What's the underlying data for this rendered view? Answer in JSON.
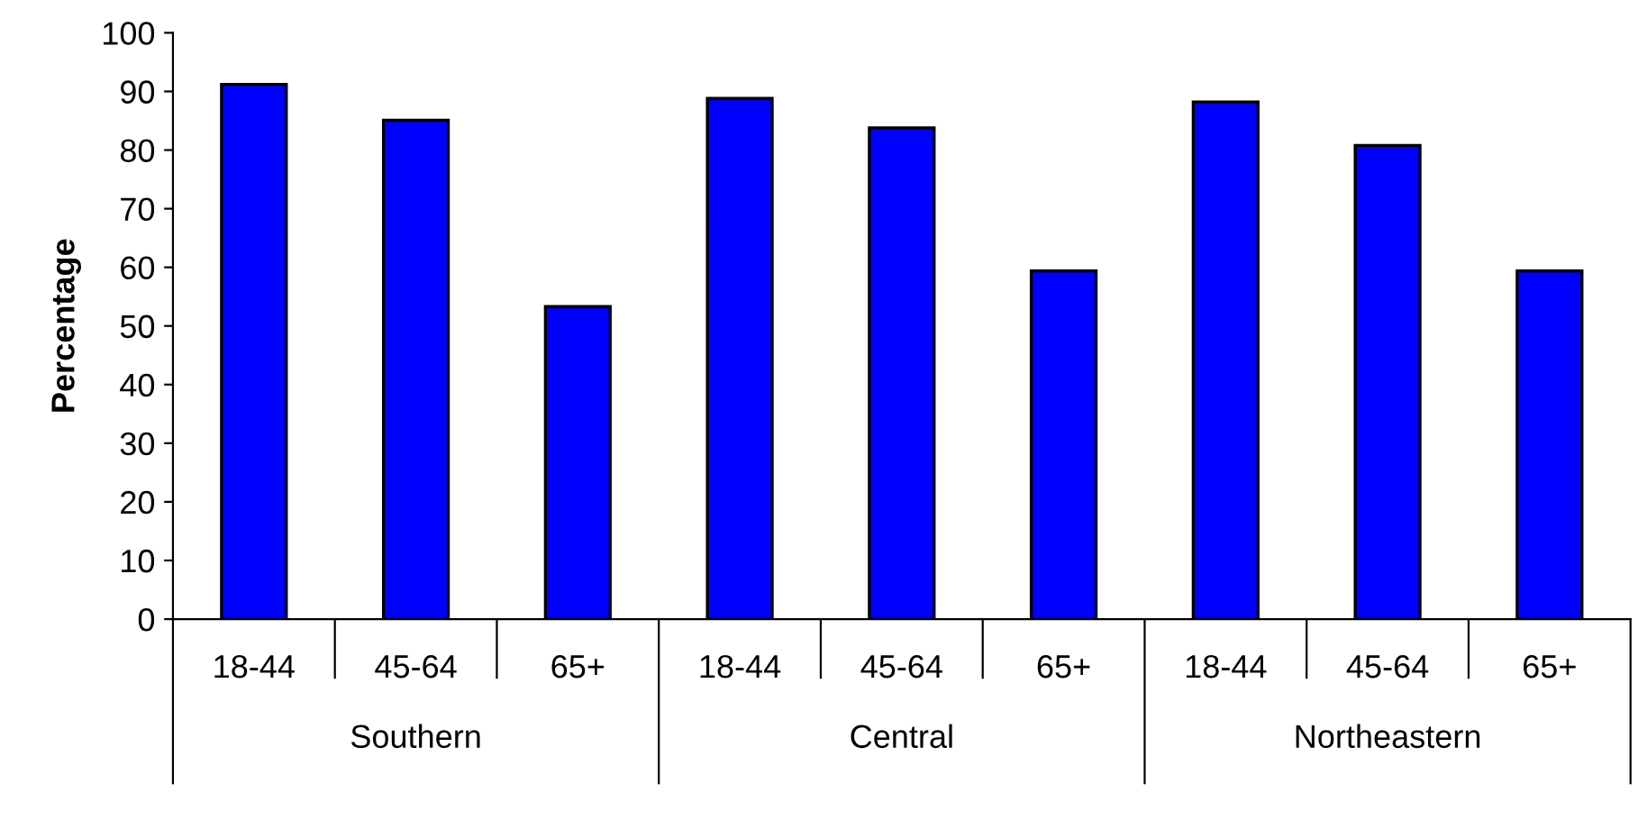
{
  "chart_data": {
    "type": "bar",
    "ylabel": "Percentage",
    "categories": [
      "18-44",
      "45-64",
      "65+",
      "18-44",
      "45-64",
      "65+",
      "18-44",
      "45-64",
      "65+"
    ],
    "values": [
      91.2,
      85.1,
      53.3,
      88.8,
      83.8,
      59.4,
      88.2,
      80.8,
      59.4
    ],
    "color": "#0000ff",
    "annotations": [
      "Southern",
      "Central",
      "Northeastern"
    ],
    "ylim": [
      0,
      100
    ],
    "yticks": [
      0,
      10,
      20,
      30,
      40,
      50,
      60,
      70,
      80,
      90,
      100
    ],
    "grid": false,
    "legend": false
  }
}
